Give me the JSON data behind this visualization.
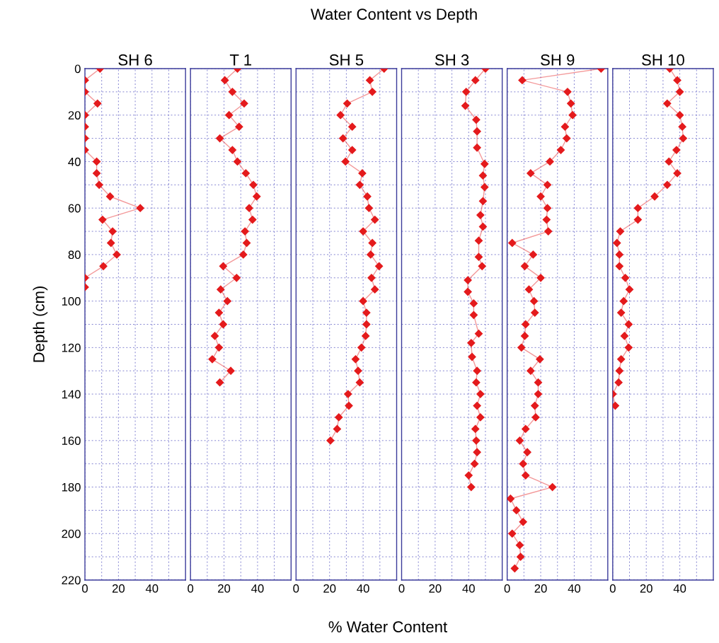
{
  "chart_data": [
    {
      "type": "other",
      "title": "Water Content vs Depth",
      "xlabel": "% Water Content"
    },
    {
      "type": "line",
      "title": "SH 6",
      "ylabel": "Depth (cm)",
      "marker": "diamond",
      "line_style": "solid",
      "grid": true,
      "xlim": [
        0,
        60
      ],
      "xticks": [
        0,
        {
          "value": 10,
          "label": null
        },
        20,
        {
          "value": 30,
          "label": null
        },
        40,
        {
          "value": 50,
          "label": null
        }
      ],
      "ylim": [
        220,
        0
      ],
      "yticks": [
        0,
        {
          "value": 10,
          "label": null
        },
        20,
        {
          "value": 30,
          "label": null
        },
        40,
        {
          "value": 50,
          "label": null
        },
        60,
        {
          "value": 70,
          "label": null
        },
        80,
        {
          "value": 90,
          "label": null
        },
        100,
        {
          "value": 110,
          "label": null
        },
        120,
        {
          "value": 130,
          "label": null
        },
        140,
        {
          "value": 150,
          "label": null
        },
        160,
        {
          "value": 170,
          "label": null
        },
        180,
        {
          "value": 190,
          "label": null
        },
        200,
        {
          "value": 210,
          "label": null
        },
        220
      ],
      "series": [
        {
          "color": "#e41a1c",
          "x": [
            9,
            0,
            0,
            7.5,
            0,
            0,
            0,
            0,
            7,
            7,
            8.5,
            15,
            33,
            10.5,
            16.5,
            15.5,
            19,
            11,
            0,
            0
          ],
          "values": [
            0,
            5,
            10,
            15,
            20,
            25,
            30,
            35,
            40,
            45,
            50,
            55,
            60,
            65,
            70,
            75,
            80,
            85,
            90,
            94
          ]
        }
      ]
    },
    {
      "type": "line",
      "title": "T 1",
      "marker": "diamond",
      "line_style": "solid",
      "grid": true,
      "tick_labels": "x",
      "xlim": [
        0,
        60
      ],
      "xticks": [
        0,
        {
          "value": 10,
          "label": null
        },
        20,
        {
          "value": 30,
          "label": null
        },
        40,
        {
          "value": 50,
          "label": null
        }
      ],
      "ylim": [
        220,
        0
      ],
      "yticks": [
        0,
        {
          "value": 10,
          "label": null
        },
        20,
        {
          "value": 30,
          "label": null
        },
        40,
        {
          "value": 50,
          "label": null
        },
        60,
        {
          "value": 70,
          "label": null
        },
        80,
        {
          "value": 90,
          "label": null
        },
        100,
        {
          "value": 110,
          "label": null
        },
        120,
        {
          "value": 130,
          "label": null
        },
        140,
        {
          "value": 150,
          "label": null
        },
        160,
        {
          "value": 170,
          "label": null
        },
        180,
        {
          "value": 190,
          "label": null
        },
        200,
        {
          "value": 210,
          "label": null
        },
        220
      ],
      "series": [
        {
          "color": "#e41a1c",
          "x": [
            28,
            20.5,
            25,
            32,
            23,
            29,
            17.5,
            25,
            28,
            33,
            37.5,
            39.5,
            35,
            37,
            32.5,
            33.5,
            31.5,
            19.5,
            27.5,
            18,
            22,
            17,
            19.5,
            14.5,
            17,
            13,
            24,
            17.5
          ],
          "values": [
            0,
            5,
            10,
            15,
            20,
            25,
            30,
            35,
            40,
            45,
            50,
            55,
            60,
            65,
            70,
            75,
            80,
            85,
            90,
            95,
            100,
            105,
            110,
            115,
            120,
            125,
            130,
            135
          ]
        }
      ]
    },
    {
      "type": "line",
      "title": "SH 5",
      "marker": "diamond",
      "line_style": "solid",
      "grid": true,
      "tick_labels": "x",
      "xlim": [
        0,
        60
      ],
      "xticks": [
        0,
        {
          "value": 10,
          "label": null
        },
        20,
        {
          "value": 30,
          "label": null
        },
        40,
        {
          "value": 50,
          "label": null
        }
      ],
      "ylim": [
        220,
        0
      ],
      "yticks": [
        0,
        {
          "value": 10,
          "label": null
        },
        20,
        {
          "value": 30,
          "label": null
        },
        40,
        {
          "value": 50,
          "label": null
        },
        60,
        {
          "value": 70,
          "label": null
        },
        80,
        {
          "value": 90,
          "label": null
        },
        100,
        {
          "value": 110,
          "label": null
        },
        120,
        {
          "value": 130,
          "label": null
        },
        140,
        {
          "value": 150,
          "label": null
        },
        160,
        {
          "value": 170,
          "label": null
        },
        180,
        {
          "value": 190,
          "label": null
        },
        200,
        {
          "value": 210,
          "label": null
        },
        220
      ],
      "series": [
        {
          "color": "#e41a1c",
          "x": [
            52.5,
            44,
            45.5,
            30.5,
            26.5,
            33.5,
            28,
            33.5,
            29.5,
            39.5,
            38,
            42.5,
            43.5,
            47,
            40,
            45.5,
            44.5,
            49.5,
            45,
            47,
            40,
            42,
            42,
            41.5,
            39,
            35.5,
            37,
            38,
            31,
            31.5,
            25.5,
            24.5,
            20.5
          ],
          "values": [
            0,
            5,
            10,
            15,
            20,
            25,
            30,
            35,
            40,
            45,
            50,
            55,
            60,
            65,
            70,
            75,
            80,
            85,
            90,
            95,
            100,
            105,
            110,
            115,
            120,
            125,
            130,
            135,
            140,
            145,
            150,
            155,
            160
          ]
        }
      ]
    },
    {
      "type": "line",
      "title": "SH 3",
      "marker": "diamond",
      "line_style": "solid",
      "grid": true,
      "tick_labels": "x",
      "xlim": [
        0,
        60
      ],
      "xticks": [
        0,
        {
          "value": 10,
          "label": null
        },
        20,
        {
          "value": 30,
          "label": null
        },
        40,
        {
          "value": 50,
          "label": null
        }
      ],
      "ylim": [
        220,
        0
      ],
      "yticks": [
        0,
        {
          "value": 10,
          "label": null
        },
        20,
        {
          "value": 30,
          "label": null
        },
        40,
        {
          "value": 50,
          "label": null
        },
        60,
        {
          "value": 70,
          "label": null
        },
        80,
        {
          "value": 90,
          "label": null
        },
        100,
        {
          "value": 110,
          "label": null
        },
        120,
        {
          "value": 130,
          "label": null
        },
        140,
        {
          "value": 150,
          "label": null
        },
        160,
        {
          "value": 170,
          "label": null
        },
        180,
        {
          "value": 190,
          "label": null
        },
        200,
        {
          "value": 210,
          "label": null
        },
        220
      ],
      "series": [
        {
          "color": "#e41a1c",
          "x": [
            50,
            44,
            38.5,
            38,
            44.5,
            45,
            45,
            49.5,
            48.5,
            49.5,
            48.5,
            47,
            48.5,
            46,
            46,
            48,
            39.5,
            39.5,
            43,
            43,
            46,
            41.5,
            42,
            45,
            44.5,
            47,
            45,
            47,
            44,
            44.5,
            45,
            43.5,
            40,
            41.5
          ],
          "values": [
            0,
            5,
            10,
            16,
            22,
            27,
            34,
            41,
            46,
            51,
            57,
            63,
            68,
            74,
            81,
            85,
            91,
            96,
            101,
            106,
            114,
            118,
            124,
            130,
            135,
            140,
            145,
            150,
            155,
            160,
            165,
            170,
            175,
            180
          ]
        }
      ]
    },
    {
      "type": "line",
      "title": "SH 9",
      "marker": "diamond",
      "line_style": "solid",
      "grid": true,
      "tick_labels": "x",
      "xlim": [
        0,
        60
      ],
      "xticks": [
        0,
        {
          "value": 10,
          "label": null
        },
        20,
        {
          "value": 30,
          "label": null
        },
        40,
        {
          "value": 50,
          "label": null
        }
      ],
      "ylim": [
        220,
        0
      ],
      "yticks": [
        0,
        {
          "value": 10,
          "label": null
        },
        20,
        {
          "value": 30,
          "label": null
        },
        40,
        {
          "value": 50,
          "label": null
        },
        60,
        {
          "value": 70,
          "label": null
        },
        80,
        {
          "value": 90,
          "label": null
        },
        100,
        {
          "value": 110,
          "label": null
        },
        120,
        {
          "value": 130,
          "label": null
        },
        140,
        {
          "value": 150,
          "label": null
        },
        160,
        {
          "value": 170,
          "label": null
        },
        180,
        {
          "value": 190,
          "label": null
        },
        200,
        {
          "value": 210,
          "label": null
        },
        220
      ],
      "series": [
        {
          "color": "#e41a1c",
          "x": [
            56,
            9,
            36,
            38,
            39,
            34.5,
            35.5,
            32,
            25.5,
            14,
            24,
            20,
            24,
            23.5,
            24.5,
            3,
            15.5,
            10.5,
            20,
            13,
            16,
            16.5,
            11,
            10.5,
            8.5,
            19.5,
            14,
            18.5,
            18.5,
            16.5,
            17,
            11,
            7.5,
            12,
            9.5,
            11,
            27,
            2,
            5.5,
            9.5,
            3,
            7.5,
            8,
            4.5
          ],
          "values": [
            0,
            5,
            10,
            15,
            20,
            25,
            30,
            35,
            40,
            45,
            50,
            55,
            60,
            65,
            70,
            75,
            80,
            85,
            90,
            95,
            100,
            105,
            110,
            115,
            120,
            125,
            130,
            135,
            140,
            145,
            150,
            155,
            160,
            165,
            170,
            175,
            180,
            185,
            190,
            195,
            200,
            205,
            210,
            215
          ]
        }
      ]
    },
    {
      "type": "line",
      "title": "SH 10",
      "marker": "diamond",
      "line_style": "solid",
      "grid": true,
      "tick_labels": "x",
      "xlim": [
        0,
        60
      ],
      "xticks": [
        0,
        {
          "value": 10,
          "label": null
        },
        20,
        {
          "value": 30,
          "label": null
        },
        40,
        {
          "value": 50,
          "label": null
        }
      ],
      "ylim": [
        220,
        0
      ],
      "yticks": [
        0,
        {
          "value": 10,
          "label": null
        },
        20,
        {
          "value": 30,
          "label": null
        },
        40,
        {
          "value": 50,
          "label": null
        },
        60,
        {
          "value": 70,
          "label": null
        },
        80,
        {
          "value": 90,
          "label": null
        },
        100,
        {
          "value": 110,
          "label": null
        },
        120,
        {
          "value": 130,
          "label": null
        },
        140,
        {
          "value": 150,
          "label": null
        },
        160,
        {
          "value": 170,
          "label": null
        },
        180,
        {
          "value": 190,
          "label": null
        },
        200,
        {
          "value": 210,
          "label": null
        },
        220
      ],
      "series": [
        {
          "color": "#e41a1c",
          "x": [
            34,
            38.5,
            40,
            32.5,
            40,
            41.5,
            42,
            38,
            33.5,
            38.5,
            32.5,
            25,
            15,
            15,
            4.5,
            2.5,
            4,
            4,
            7.5,
            10,
            6.5,
            5,
            9.5,
            7,
            9.5,
            5,
            4,
            3.5,
            0,
            1.5
          ],
          "values": [
            0,
            5,
            10,
            15,
            20,
            25,
            30,
            35,
            40,
            45,
            50,
            55,
            60,
            65,
            70,
            75,
            80,
            85,
            90,
            95,
            100,
            105,
            110,
            115,
            120,
            125,
            130,
            135,
            140,
            145
          ]
        }
      ]
    }
  ]
}
